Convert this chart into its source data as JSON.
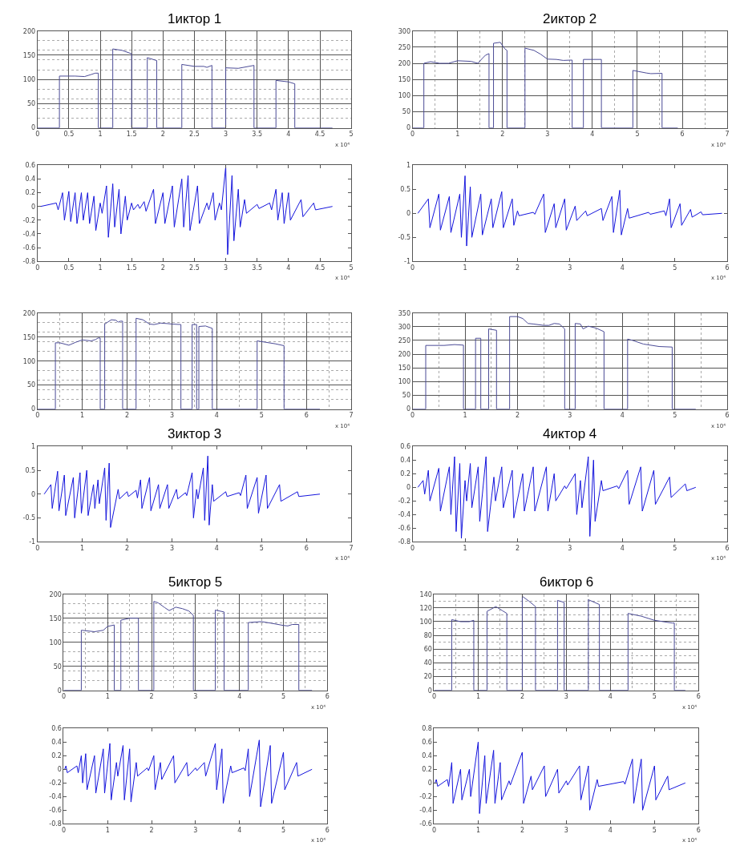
{
  "chart_data": [
    {
      "type": "line",
      "title": "1иктор 1",
      "color": "#4b4b96",
      "grid": true,
      "xlim": [
        0,
        5
      ],
      "xticks": [
        0,
        0.5,
        1,
        1.5,
        2,
        2.5,
        3,
        3.5,
        4,
        4.5,
        5
      ],
      "ylim": [
        0,
        200
      ],
      "yticks": [
        0,
        50,
        100,
        150,
        200
      ],
      "annotations": [
        "x 10⁴"
      ],
      "x": [
        0,
        0.35,
        0.35,
        0.6,
        0.75,
        0.85,
        0.92,
        0.97,
        0.97,
        1.2,
        1.2,
        1.35,
        1.5,
        1.5,
        1.75,
        1.75,
        1.9,
        1.9,
        2.3,
        2.3,
        2.5,
        2.65,
        2.7,
        2.78,
        2.78,
        3.0,
        3.0,
        3.2,
        3.45,
        3.45,
        3.8,
        3.8,
        4.0,
        4.1,
        4.1,
        4.7
      ],
      "values": [
        0,
        0,
        107,
        107,
        106,
        110,
        113,
        113,
        0,
        0,
        163,
        160,
        153,
        0,
        0,
        145,
        139,
        0,
        0,
        131,
        127,
        127,
        125,
        129,
        0,
        0,
        124,
        123,
        129,
        0,
        0,
        98,
        95,
        91,
        0,
        0
      ]
    },
    {
      "type": "line",
      "title": "2иктор 2",
      "color": "#4b4b96",
      "grid": true,
      "xlim": [
        0,
        7
      ],
      "xticks": [
        0,
        1,
        2,
        3,
        4,
        5,
        6,
        7
      ],
      "ylim": [
        0,
        300
      ],
      "yticks": [
        0,
        50,
        100,
        150,
        200,
        250,
        300
      ],
      "annotations": [
        "x 10⁴"
      ],
      "x": [
        0,
        0.25,
        0.25,
        0.4,
        0.6,
        0.8,
        1.0,
        1.3,
        1.45,
        1.55,
        1.62,
        1.7,
        1.7,
        1.8,
        1.8,
        1.95,
        2.05,
        2.1,
        2.1,
        2.5,
        2.5,
        2.7,
        2.85,
        3.0,
        3.2,
        3.35,
        3.55,
        3.55,
        3.8,
        3.8,
        4.2,
        4.2,
        4.9,
        4.9,
        5.2,
        5.3,
        5.55,
        5.55,
        5.9
      ],
      "values": [
        0,
        0,
        200,
        205,
        200,
        200,
        208,
        206,
        200,
        215,
        225,
        230,
        0,
        0,
        262,
        265,
        245,
        240,
        0,
        0,
        247,
        240,
        228,
        213,
        212,
        209,
        210,
        0,
        0,
        212,
        212,
        0,
        0,
        178,
        170,
        168,
        169,
        0,
        0
      ]
    },
    {
      "type": "line",
      "color": "#1414dc",
      "xlim": [
        0,
        5
      ],
      "xticks": [
        0,
        0.5,
        1,
        1.5,
        2,
        2.5,
        3,
        3.5,
        4,
        4.5,
        5
      ],
      "ylim": [
        -0.8,
        0.6
      ],
      "yticks": [
        -0.8,
        -0.6,
        -0.4,
        -0.2,
        0,
        0.2,
        0.4,
        0.6
      ],
      "annotations": [
        "x 10⁴"
      ],
      "x": [
        0.05,
        0.3,
        0.33,
        0.4,
        0.43,
        0.5,
        0.53,
        0.6,
        0.63,
        0.7,
        0.73,
        0.8,
        0.83,
        0.9,
        0.93,
        1.0,
        1.03,
        1.1,
        1.13,
        1.2,
        1.23,
        1.3,
        1.33,
        1.4,
        1.43,
        1.5,
        1.53,
        1.6,
        1.63,
        1.7,
        1.73,
        1.85,
        1.88,
        2.0,
        2.03,
        2.15,
        2.18,
        2.3,
        2.33,
        2.4,
        2.43,
        2.55,
        2.58,
        2.7,
        2.73,
        2.8,
        2.83,
        2.9,
        2.93,
        3.0,
        3.03,
        3.1,
        3.13,
        3.2,
        3.23,
        3.3,
        3.33,
        3.5,
        3.53,
        3.7,
        3.73,
        3.8,
        3.83,
        3.9,
        3.93,
        4.0,
        4.03,
        4.2,
        4.23,
        4.4,
        4.43,
        4.7
      ],
      "values": [
        0,
        0.05,
        -0.05,
        0.2,
        -0.2,
        0.22,
        -0.22,
        0.2,
        -0.25,
        0.2,
        -0.2,
        0.2,
        -0.25,
        0.15,
        -0.35,
        0.05,
        -0.1,
        0.3,
        -0.45,
        0.33,
        -0.3,
        0.25,
        -0.4,
        0.15,
        -0.2,
        0.05,
        -0.05,
        0.03,
        -0.03,
        0.07,
        -0.07,
        0.25,
        -0.25,
        0.2,
        -0.25,
        0.3,
        -0.3,
        0.4,
        -0.3,
        0.45,
        -0.35,
        0.3,
        -0.25,
        0.05,
        -0.05,
        0.2,
        -0.2,
        0.05,
        -0.05,
        0.58,
        -0.7,
        0.45,
        -0.5,
        0.25,
        -0.3,
        0.1,
        -0.1,
        0.03,
        -0.03,
        0.05,
        -0.05,
        0.25,
        -0.2,
        0.2,
        -0.25,
        0.2,
        -0.2,
        0.1,
        -0.15,
        0.05,
        -0.05,
        0
      ]
    },
    {
      "type": "line",
      "color": "#1414dc",
      "xlim": [
        0,
        6
      ],
      "xticks": [
        0,
        1,
        2,
        3,
        4,
        5,
        6
      ],
      "ylim": [
        -1,
        1
      ],
      "yticks": [
        -1,
        -0.5,
        0,
        0.5,
        1
      ],
      "annotations": [
        "x 10⁴"
      ],
      "x": [
        0.1,
        0.3,
        0.33,
        0.5,
        0.53,
        0.7,
        0.73,
        0.9,
        0.93,
        1.0,
        1.03,
        1.1,
        1.13,
        1.3,
        1.33,
        1.5,
        1.53,
        1.7,
        1.73,
        1.9,
        1.93,
        2.0,
        2.03,
        2.3,
        2.33,
        2.5,
        2.53,
        2.7,
        2.73,
        2.9,
        2.93,
        3.1,
        3.13,
        3.3,
        3.33,
        3.6,
        3.63,
        3.8,
        3.83,
        3.95,
        3.98,
        4.1,
        4.13,
        4.5,
        4.53,
        4.8,
        4.83,
        4.9,
        4.93,
        5.1,
        5.13,
        5.3,
        5.33,
        5.5,
        5.53,
        5.9
      ],
      "values": [
        0,
        0.3,
        -0.3,
        0.4,
        -0.35,
        0.35,
        -0.4,
        0.4,
        -0.5,
        0.78,
        -0.68,
        0.55,
        -0.5,
        0.4,
        -0.45,
        0.3,
        -0.3,
        0.45,
        -0.3,
        0.3,
        -0.25,
        0.05,
        -0.05,
        0.02,
        -0.02,
        0.4,
        -0.4,
        0.2,
        -0.3,
        0.3,
        -0.35,
        0.15,
        -0.15,
        0.05,
        -0.05,
        0.1,
        -0.15,
        0.35,
        -0.4,
        0.48,
        -0.45,
        0.1,
        -0.1,
        0.02,
        -0.02,
        0.05,
        -0.05,
        0.3,
        -0.3,
        0.2,
        -0.25,
        0.08,
        -0.08,
        0.03,
        -0.03,
        0
      ]
    },
    {
      "type": "line",
      "color": "#4b4b96",
      "grid": true,
      "xlim": [
        0,
        7
      ],
      "xticks": [
        0,
        1,
        2,
        3,
        4,
        5,
        6,
        7
      ],
      "ylim": [
        0,
        200
      ],
      "yticks": [
        0,
        50,
        100,
        150,
        200
      ],
      "annotations": [
        "x 10⁴"
      ],
      "x": [
        0,
        0.4,
        0.4,
        0.5,
        0.7,
        0.85,
        1.0,
        1.2,
        1.3,
        1.35,
        1.4,
        1.4,
        1.5,
        1.5,
        1.55,
        1.65,
        1.75,
        1.8,
        1.85,
        1.9,
        1.9,
        2.2,
        2.2,
        2.35,
        2.5,
        2.6,
        2.75,
        2.9,
        3.0,
        3.2,
        3.2,
        3.45,
        3.45,
        3.55,
        3.55,
        3.6,
        3.6,
        3.75,
        3.9,
        3.9,
        4.9,
        4.9,
        5.1,
        5.3,
        5.5,
        5.5,
        6.3
      ],
      "values": [
        0,
        0,
        138,
        138,
        133,
        139,
        144,
        142,
        145,
        148,
        148,
        0,
        0,
        177,
        180,
        186,
        185,
        181,
        183,
        183,
        0,
        0,
        189,
        186,
        177,
        176,
        179,
        178,
        177,
        176,
        0,
        0,
        176,
        176,
        0,
        0,
        172,
        173,
        168,
        0,
        0,
        142,
        139,
        136,
        132,
        0,
        0
      ]
    },
    {
      "type": "line",
      "color": "#4b4b96",
      "grid": true,
      "xlim": [
        0,
        6
      ],
      "xticks": [
        0,
        1,
        2,
        3,
        4,
        5,
        6
      ],
      "ylim": [
        0,
        350
      ],
      "yticks": [
        0,
        50,
        100,
        150,
        200,
        250,
        300,
        350
      ],
      "annotations": [
        "x 10⁴"
      ],
      "x": [
        0,
        0.25,
        0.25,
        0.6,
        0.8,
        0.97,
        0.97,
        1.2,
        1.2,
        1.3,
        1.3,
        1.45,
        1.45,
        1.6,
        1.6,
        1.85,
        1.85,
        2.0,
        2.1,
        2.2,
        2.3,
        2.5,
        2.6,
        2.7,
        2.8,
        2.9,
        2.9,
        3.1,
        3.1,
        3.2,
        3.25,
        3.35,
        3.5,
        3.65,
        3.65,
        4.1,
        4.1,
        4.2,
        4.4,
        4.7,
        4.95,
        4.95,
        5.4
      ],
      "values": [
        0,
        0,
        232,
        232,
        235,
        233,
        0,
        0,
        258,
        258,
        0,
        0,
        292,
        287,
        0,
        0,
        337,
        337,
        330,
        312,
        310,
        305,
        305,
        312,
        310,
        292,
        0,
        0,
        312,
        310,
        292,
        302,
        295,
        282,
        0,
        0,
        255,
        250,
        237,
        228,
        226,
        0,
        0
      ]
    },
    {
      "type": "line",
      "title": "3иктор 3",
      "color": "#1414dc",
      "xlim": [
        0,
        7
      ],
      "xticks": [
        0,
        1,
        2,
        3,
        4,
        5,
        6,
        7
      ],
      "ylim": [
        -1,
        1
      ],
      "yticks": [
        -1,
        -0.5,
        0,
        0.5,
        1
      ],
      "annotations": [
        "x 10⁴"
      ],
      "x": [
        0.15,
        0.3,
        0.33,
        0.45,
        0.48,
        0.6,
        0.63,
        0.8,
        0.83,
        0.95,
        0.98,
        1.1,
        1.13,
        1.25,
        1.28,
        1.35,
        1.38,
        1.5,
        1.53,
        1.6,
        1.63,
        1.8,
        1.83,
        2.0,
        2.03,
        2.2,
        2.23,
        2.3,
        2.33,
        2.5,
        2.53,
        2.7,
        2.73,
        2.9,
        2.93,
        3.1,
        3.13,
        3.3,
        3.33,
        3.45,
        3.48,
        3.55,
        3.58,
        3.7,
        3.73,
        3.8,
        3.83,
        3.9,
        3.93,
        4.2,
        4.23,
        4.5,
        4.53,
        4.65,
        4.68,
        4.9,
        4.93,
        5.1,
        5.13,
        5.4,
        5.43,
        5.8,
        5.83,
        6.3
      ],
      "values": [
        0,
        0.2,
        -0.3,
        0.48,
        -0.35,
        0.4,
        -0.45,
        0.35,
        -0.5,
        0.45,
        -0.4,
        0.5,
        -0.45,
        0.2,
        -0.3,
        0.3,
        -0.2,
        0.55,
        -0.55,
        0.65,
        -0.7,
        0.1,
        -0.1,
        0.05,
        -0.05,
        0.08,
        -0.08,
        0.3,
        -0.3,
        0.35,
        -0.35,
        0.2,
        -0.3,
        0.2,
        -0.3,
        0.1,
        -0.1,
        0.03,
        -0.03,
        0.45,
        -0.5,
        0.1,
        -0.1,
        0.55,
        -0.55,
        0.8,
        -0.65,
        0.2,
        -0.15,
        0.05,
        -0.05,
        0.03,
        -0.03,
        0.4,
        -0.3,
        0.35,
        -0.4,
        0.4,
        -0.3,
        0.2,
        -0.15,
        0.05,
        -0.05,
        0
      ]
    },
    {
      "type": "line",
      "title": "4иктор 4",
      "color": "#1414dc",
      "xlim": [
        0,
        6
      ],
      "xticks": [
        0,
        1,
        2,
        3,
        4,
        5,
        6
      ],
      "ylim": [
        -0.8,
        0.6
      ],
      "yticks": [
        -0.8,
        -0.6,
        -0.4,
        -0.2,
        0,
        0.2,
        0.4,
        0.6
      ],
      "annotations": [
        "x 10⁴"
      ],
      "x": [
        0.1,
        0.2,
        0.23,
        0.3,
        0.33,
        0.5,
        0.53,
        0.7,
        0.73,
        0.8,
        0.83,
        0.9,
        0.93,
        1.0,
        1.03,
        1.1,
        1.13,
        1.25,
        1.28,
        1.4,
        1.43,
        1.55,
        1.58,
        1.7,
        1.73,
        1.9,
        1.93,
        2.1,
        2.13,
        2.3,
        2.33,
        2.55,
        2.58,
        2.7,
        2.73,
        2.9,
        2.93,
        3.1,
        3.13,
        3.2,
        3.23,
        3.35,
        3.38,
        3.45,
        3.48,
        3.6,
        3.63,
        3.9,
        3.93,
        4.1,
        4.13,
        4.35,
        4.38,
        4.6,
        4.63,
        4.9,
        4.93,
        5.2,
        5.23,
        5.4
      ],
      "values": [
        0,
        0.1,
        -0.1,
        0.25,
        -0.2,
        0.28,
        -0.35,
        0.3,
        -0.4,
        0.45,
        -0.65,
        0.35,
        -0.75,
        0.1,
        -0.2,
        0.35,
        -0.3,
        0.3,
        -0.5,
        0.45,
        -0.65,
        0.15,
        -0.2,
        0.3,
        -0.3,
        0.25,
        -0.45,
        0.2,
        -0.35,
        0.3,
        -0.35,
        0.3,
        -0.35,
        0.2,
        -0.2,
        0.02,
        -0.02,
        0.2,
        -0.4,
        0.1,
        -0.3,
        0.45,
        -0.72,
        0.4,
        -0.5,
        0.1,
        -0.05,
        0.02,
        -0.02,
        0.25,
        -0.25,
        0.3,
        -0.35,
        0.25,
        -0.25,
        0.15,
        -0.15,
        0.05,
        -0.05,
        0
      ]
    },
    {
      "type": "line",
      "title": "5иктор 5",
      "color": "#4b4b96",
      "grid": true,
      "xlim": [
        0,
        6
      ],
      "xticks": [
        0,
        1,
        2,
        3,
        4,
        5,
        6
      ],
      "ylim": [
        0,
        200
      ],
      "yticks": [
        0,
        50,
        100,
        150,
        200
      ],
      "annotations": [
        "x 10⁴"
      ],
      "x": [
        0,
        0.4,
        0.4,
        0.7,
        0.9,
        1.0,
        1.15,
        1.15,
        1.3,
        1.3,
        1.5,
        1.7,
        1.7,
        2.05,
        2.05,
        2.15,
        2.3,
        2.4,
        2.55,
        2.7,
        2.85,
        2.95,
        2.95,
        3.45,
        3.45,
        3.65,
        3.65,
        4.2,
        4.2,
        4.5,
        4.7,
        5.0,
        5.1,
        5.2,
        5.35,
        5.35,
        5.65
      ],
      "values": [
        0,
        0,
        125,
        122,
        125,
        133,
        136,
        0,
        0,
        146,
        150,
        150,
        0,
        0,
        185,
        182,
        172,
        166,
        173,
        170,
        165,
        156,
        0,
        0,
        167,
        163,
        0,
        0,
        141,
        143,
        140,
        135,
        134,
        137,
        137,
        0,
        0
      ]
    },
    {
      "type": "line",
      "title": "6иктор 6",
      "color": "#4b4b96",
      "grid": true,
      "xlim": [
        0,
        6
      ],
      "xticks": [
        0,
        1,
        2,
        3,
        4,
        5,
        6
      ],
      "ylim": [
        0,
        140
      ],
      "yticks": [
        0,
        20,
        40,
        60,
        80,
        100,
        120,
        140
      ],
      "annotations": [
        "x 10⁴"
      ],
      "x": [
        0,
        0.4,
        0.4,
        0.6,
        0.8,
        0.9,
        0.9,
        1.2,
        1.2,
        1.4,
        1.55,
        1.65,
        1.65,
        2.0,
        2.0,
        2.15,
        2.3,
        2.3,
        2.8,
        2.8,
        2.95,
        2.95,
        3.5,
        3.5,
        3.75,
        3.75,
        4.4,
        4.4,
        4.7,
        5.0,
        5.4,
        5.45,
        5.45,
        5.7
      ],
      "values": [
        0,
        0,
        103,
        100,
        100,
        102,
        0,
        0,
        115,
        122,
        116,
        112,
        0,
        0,
        137,
        130,
        122,
        0,
        0,
        131,
        128,
        0,
        0,
        132,
        125,
        0,
        0,
        112,
        108,
        102,
        98,
        98,
        0,
        0
      ]
    },
    {
      "type": "line",
      "color": "#1414dc",
      "xlim": [
        0,
        6
      ],
      "xticks": [
        0,
        1,
        2,
        3,
        4,
        5,
        6
      ],
      "ylim": [
        -0.8,
        0.6
      ],
      "yticks": [
        -0.8,
        -0.6,
        -0.4,
        -0.2,
        0,
        0.2,
        0.4,
        0.6
      ],
      "annotations": [
        "x 10⁴"
      ],
      "x": [
        0.02,
        0.05,
        0.08,
        0.3,
        0.33,
        0.4,
        0.43,
        0.5,
        0.53,
        0.7,
        0.73,
        0.9,
        0.93,
        1.05,
        1.08,
        1.2,
        1.23,
        1.35,
        1.38,
        1.5,
        1.53,
        1.65,
        1.68,
        1.9,
        1.93,
        2.05,
        2.08,
        2.2,
        2.23,
        2.5,
        2.53,
        2.8,
        2.83,
        3.0,
        3.03,
        3.2,
        3.23,
        3.45,
        3.48,
        3.6,
        3.63,
        3.8,
        3.83,
        4.1,
        4.13,
        4.2,
        4.23,
        4.45,
        4.48,
        4.7,
        4.73,
        5.0,
        5.03,
        5.3,
        5.33,
        5.65
      ],
      "values": [
        0,
        0.05,
        -0.05,
        0.05,
        -0.05,
        0.2,
        -0.2,
        0.23,
        -0.3,
        0.2,
        -0.35,
        0.3,
        -0.35,
        0.38,
        -0.45,
        0.1,
        -0.1,
        0.35,
        -0.45,
        0.3,
        -0.48,
        0.1,
        -0.1,
        0.02,
        -0.02,
        0.2,
        -0.3,
        0.1,
        -0.15,
        0.2,
        -0.2,
        0.1,
        -0.1,
        0.02,
        -0.02,
        0.1,
        -0.1,
        0.38,
        -0.3,
        0.3,
        -0.5,
        0.05,
        -0.05,
        0.02,
        -0.02,
        0.3,
        -0.4,
        0.43,
        -0.55,
        0.35,
        -0.5,
        0.25,
        -0.3,
        0.1,
        -0.1,
        0
      ]
    },
    {
      "type": "line",
      "color": "#1414dc",
      "xlim": [
        0,
        6
      ],
      "xticks": [
        0,
        1,
        2,
        3,
        4,
        5,
        6
      ],
      "ylim": [
        -0.6,
        0.8
      ],
      "yticks": [
        -0.6,
        -0.4,
        -0.2,
        0,
        0.2,
        0.4,
        0.6,
        0.8
      ],
      "annotations": [
        "x 10⁴"
      ],
      "x": [
        0.02,
        0.05,
        0.08,
        0.3,
        0.33,
        0.4,
        0.43,
        0.6,
        0.63,
        0.8,
        0.83,
        1.0,
        1.03,
        1.15,
        1.18,
        1.35,
        1.38,
        1.5,
        1.53,
        1.7,
        1.73,
        2.0,
        2.03,
        2.2,
        2.23,
        2.5,
        2.53,
        2.8,
        2.83,
        3.0,
        3.03,
        3.3,
        3.33,
        3.5,
        3.53,
        3.7,
        3.73,
        4.3,
        4.33,
        4.5,
        4.53,
        4.7,
        4.73,
        5.0,
        5.03,
        5.3,
        5.33,
        5.7
      ],
      "values": [
        0,
        0.05,
        -0.05,
        0.05,
        -0.05,
        0.3,
        -0.3,
        0.2,
        -0.25,
        0.2,
        -0.2,
        0.6,
        -0.45,
        0.4,
        -0.3,
        0.48,
        -0.3,
        0.3,
        -0.25,
        0.03,
        -0.03,
        0.45,
        -0.3,
        0.1,
        -0.1,
        0.25,
        -0.2,
        0.2,
        -0.15,
        0.03,
        -0.03,
        0.25,
        -0.25,
        0.25,
        -0.4,
        0.05,
        -0.05,
        0.02,
        -0.02,
        0.35,
        -0.3,
        0.35,
        -0.4,
        0.25,
        -0.25,
        0.1,
        -0.1,
        0
      ]
    }
  ]
}
